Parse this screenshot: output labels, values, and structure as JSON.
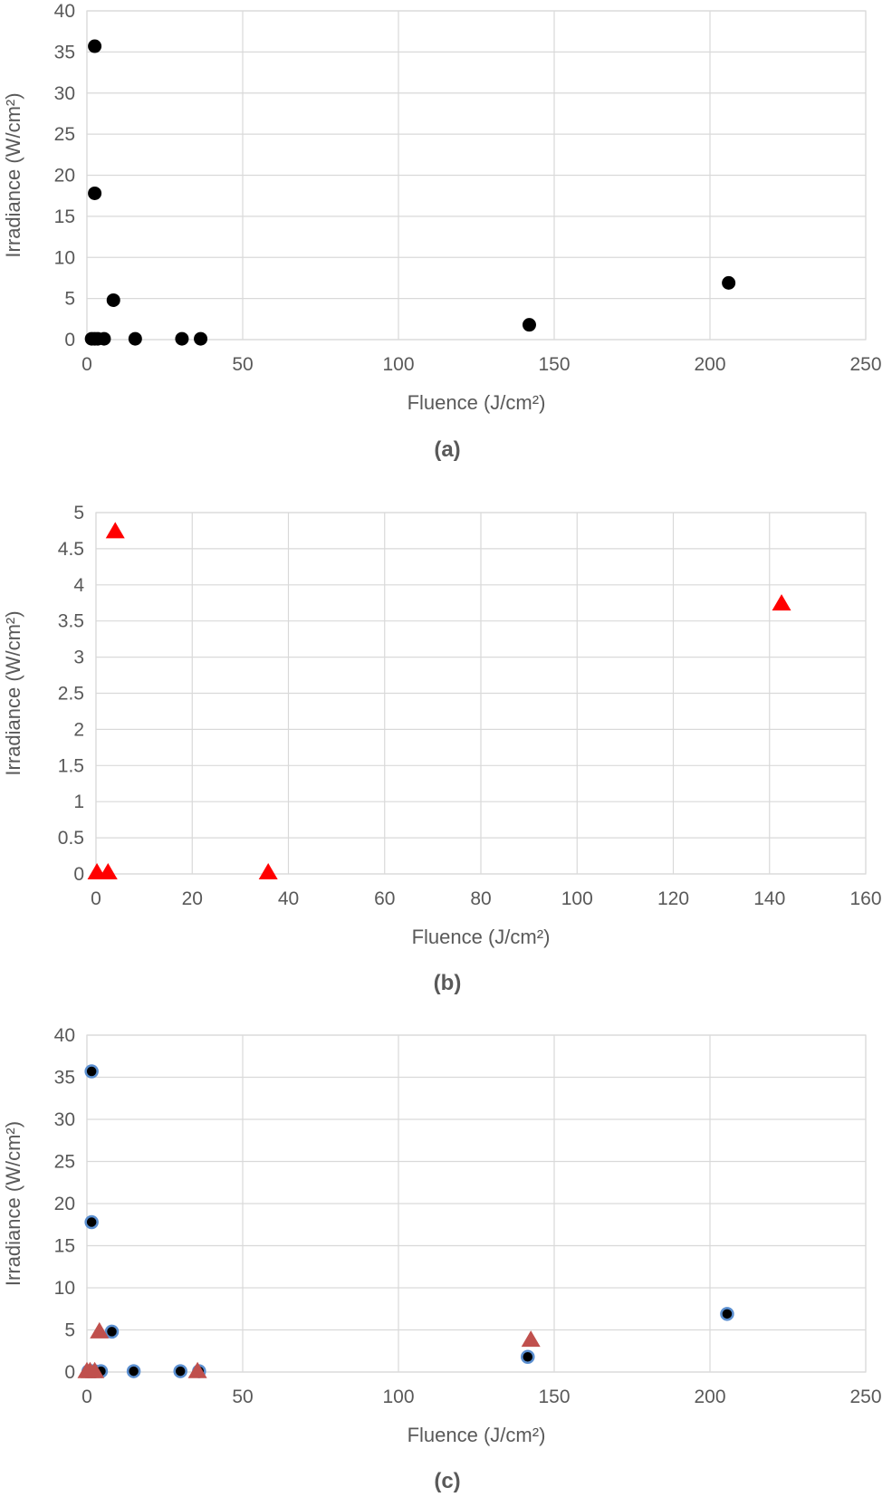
{
  "chart_data": [
    {
      "type": "scatter",
      "caption": "(a)",
      "xlabel": "Fluence (J/cm²)",
      "ylabel": "Irradiance (W/cm²)",
      "xlim": [
        0,
        250
      ],
      "ylim": [
        0,
        40
      ],
      "xticks": [
        0,
        50,
        100,
        150,
        200,
        250
      ],
      "yticks": [
        0,
        5,
        10,
        15,
        20,
        25,
        30,
        35,
        40
      ],
      "grid": true,
      "series": [
        {
          "marker": "circle",
          "color": "#000000",
          "points": [
            {
              "x": 1.5,
              "y": 0.1
            },
            {
              "x": 2.5,
              "y": 0.1
            },
            {
              "x": 3.5,
              "y": 0.1
            },
            {
              "x": 5.5,
              "y": 0.1
            },
            {
              "x": 2.5,
              "y": 35.7
            },
            {
              "x": 2.5,
              "y": 17.8
            },
            {
              "x": 8.5,
              "y": 4.8
            },
            {
              "x": 15.5,
              "y": 0.1
            },
            {
              "x": 30.5,
              "y": 0.1
            },
            {
              "x": 36.5,
              "y": 0.1
            },
            {
              "x": 142,
              "y": 1.8
            },
            {
              "x": 206,
              "y": 6.9
            }
          ]
        }
      ]
    },
    {
      "type": "scatter",
      "caption": "(b)",
      "xlabel": "Fluence (J/cm²)",
      "ylabel": "Irradiance (W/cm²)",
      "xlim": [
        0,
        160
      ],
      "ylim": [
        0,
        5
      ],
      "xticks": [
        0,
        20,
        40,
        60,
        80,
        100,
        120,
        140,
        160
      ],
      "yticks": [
        0,
        0.5,
        1,
        1.5,
        2,
        2.5,
        3,
        3.5,
        4,
        4.5,
        5
      ],
      "grid": true,
      "series": [
        {
          "marker": "triangle",
          "color": "#ff0000",
          "points": [
            {
              "x": 0.2,
              "y": 0.01
            },
            {
              "x": 2.5,
              "y": 0.01
            },
            {
              "x": 4,
              "y": 4.73
            },
            {
              "x": 35.8,
              "y": 0.01
            },
            {
              "x": 142.5,
              "y": 3.73
            }
          ]
        }
      ]
    },
    {
      "type": "scatter",
      "caption": "(c)",
      "xlabel": "Fluence (J/cm²)",
      "ylabel": "Irradiance (W/cm²)",
      "xlim": [
        0,
        250
      ],
      "ylim": [
        0,
        40
      ],
      "xticks": [
        0,
        50,
        100,
        150,
        200,
        250
      ],
      "yticks": [
        0,
        5,
        10,
        15,
        20,
        25,
        30,
        35,
        40
      ],
      "grid": true,
      "series": [
        {
          "marker": "circle-outlined",
          "color": "#000000",
          "outline": "#5b8fd0",
          "points": [
            {
              "x": 0.5,
              "y": 0.1
            },
            {
              "x": 1.5,
              "y": 0.1
            },
            {
              "x": 2.5,
              "y": 0.1
            },
            {
              "x": 4.5,
              "y": 0.1
            },
            {
              "x": 1.5,
              "y": 35.7
            },
            {
              "x": 1.5,
              "y": 17.8
            },
            {
              "x": 8,
              "y": 4.8
            },
            {
              "x": 15,
              "y": 0.1
            },
            {
              "x": 30,
              "y": 0.1
            },
            {
              "x": 36,
              "y": 0.1
            },
            {
              "x": 141.5,
              "y": 1.8
            },
            {
              "x": 205.5,
              "y": 6.9
            }
          ]
        },
        {
          "marker": "triangle",
          "color": "#c0504d",
          "points": [
            {
              "x": 0,
              "y": 0.01
            },
            {
              "x": 1,
              "y": 0.01
            },
            {
              "x": 2.5,
              "y": 0.01
            },
            {
              "x": 4,
              "y": 4.73
            },
            {
              "x": 35.5,
              "y": 0.01
            },
            {
              "x": 142.5,
              "y": 3.73
            }
          ]
        }
      ]
    }
  ]
}
